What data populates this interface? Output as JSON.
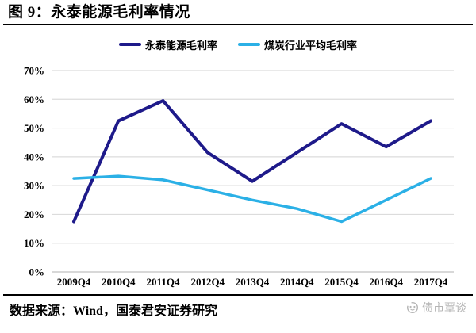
{
  "title": "图 9：永泰能源毛利率情况",
  "legend": {
    "items": [
      "永泰能源毛利率",
      "煤炭行业平均毛利率"
    ]
  },
  "footer": {
    "source": "数据来源：Wind，国泰君安证券研究"
  },
  "watermark": {
    "label": "债市覃谈",
    "icon": "brand-logo-icon"
  },
  "colors": {
    "series_yongtai": "#1E1A8A",
    "series_coal": "#2BB0E6",
    "grid": "#DCDCDC",
    "axis_line": "#C0C0C0",
    "rule": "#000000",
    "tick_text": "#000000",
    "watermark": "#B5B5B5"
  },
  "chart_data": {
    "type": "line",
    "title": "永泰能源毛利率情况",
    "categories": [
      "2009Q4",
      "2010Q4",
      "2011Q4",
      "2012Q4",
      "2013Q4",
      "2014Q4",
      "2015Q4",
      "2016Q4",
      "2017Q4"
    ],
    "series": [
      {
        "name": "永泰能源毛利率",
        "color": "#1E1A8A",
        "values": [
          17.5,
          52.5,
          59.5,
          41.5,
          31.5,
          41.5,
          51.5,
          43.5,
          52.5
        ]
      },
      {
        "name": "煤炭行业平均毛利率",
        "color": "#2BB0E6",
        "values": [
          32.5,
          33.3,
          32.0,
          28.5,
          25.0,
          22.0,
          17.5,
          25.0,
          32.5
        ]
      }
    ],
    "xlabel": "",
    "ylabel": "",
    "ylim": [
      0,
      70
    ],
    "y_step": 10,
    "y_tick_format": "percent",
    "y_tick_labels": [
      "0%",
      "10%",
      "20%",
      "30%",
      "40%",
      "50%",
      "60%",
      "70%"
    ],
    "grid": "horizontal",
    "legend_position": "top-center"
  }
}
